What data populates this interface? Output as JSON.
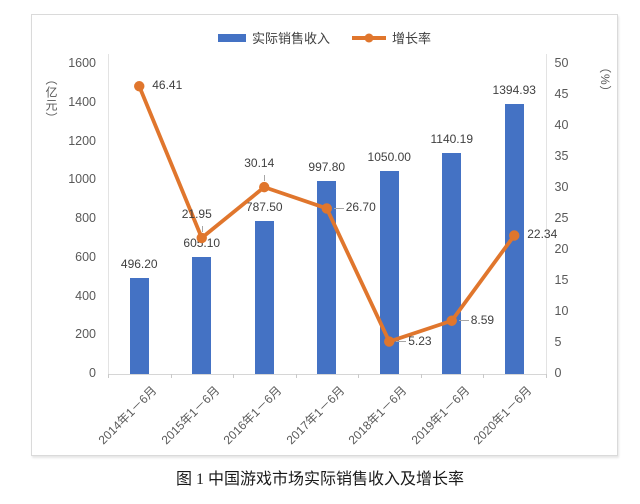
{
  "caption": "图 1 中国游戏市场实际销售收入及增长率",
  "colors": {
    "bar": "#4472C4",
    "line": "#E0762D",
    "axis_text": "#595959",
    "label_text": "#404040",
    "axis_line": "#D6D6D6",
    "leader_line": "#A6A6A6",
    "panel_border": "#DADADA"
  },
  "chart_data": {
    "type": "bar+line combo",
    "title": "",
    "categories": [
      "2014年1－6月",
      "2015年1－6月",
      "2016年1－6月",
      "2017年1－6月",
      "2018年1－6月",
      "2019年1－6月",
      "2020年1－6月"
    ],
    "series": [
      {
        "name": "实际销售收入",
        "type": "bar",
        "axis": "left",
        "color": "#4472C4",
        "values": [
          496.2,
          605.1,
          787.5,
          997.8,
          1050.0,
          1140.19,
          1394.93
        ],
        "labels": [
          "496.20",
          "605.10",
          "787.50",
          "997.80",
          "1050.00",
          "1140.19",
          "1394.93"
        ]
      },
      {
        "name": "增长率",
        "type": "line",
        "axis": "right",
        "color": "#E0762D",
        "values": [
          46.41,
          21.95,
          30.14,
          26.7,
          5.23,
          8.59,
          22.34
        ],
        "labels": [
          "46.41",
          "21.95",
          "30.14",
          "26.70",
          "5.23",
          "8.59",
          "22.34"
        ],
        "label_placement": [
          "right",
          "above",
          "above",
          "right-leader",
          "right-leader",
          "right-leader",
          "right"
        ]
      }
    ],
    "left_axis": {
      "label": "（亿元）",
      "min": 0,
      "max": 1600,
      "step": 200,
      "ticks": [
        "0",
        "200",
        "400",
        "600",
        "800",
        "1000",
        "1200",
        "1400",
        "1600"
      ]
    },
    "right_axis": {
      "label": "（%）",
      "min": 0,
      "max": 50,
      "step": 5,
      "ticks": [
        "0",
        "5",
        "10",
        "15",
        "20",
        "25",
        "30",
        "35",
        "40",
        "45",
        "50"
      ]
    },
    "grid": false,
    "legend_position": "top-center"
  }
}
